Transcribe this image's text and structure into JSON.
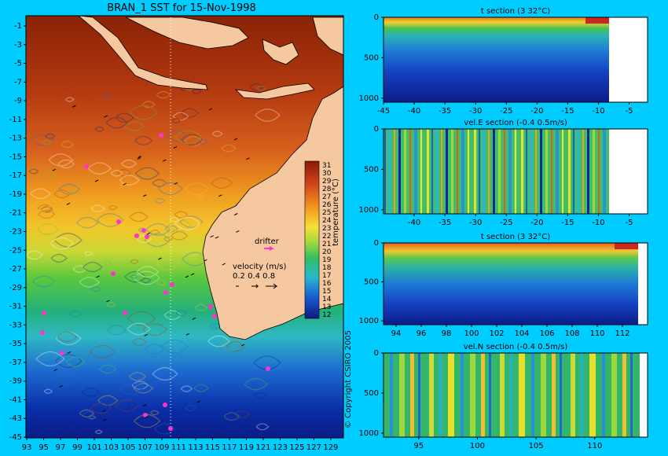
{
  "map": {
    "title": "BRAN_1 SST for 15-Nov-1998",
    "xticks": [
      "93",
      "95",
      "97",
      "99",
      "101",
      "103",
      "105",
      "107",
      "109",
      "111",
      "113",
      "115",
      "117",
      "119",
      "121",
      "123",
      "125",
      "127",
      "129"
    ],
    "yticks": [
      "-1",
      "-3",
      "-5",
      "-7",
      "-9",
      "-11",
      "-13",
      "-15",
      "-17",
      "-19",
      "-21",
      "-23",
      "-25",
      "-27",
      "-29",
      "-31",
      "-33",
      "-35",
      "-37",
      "-39",
      "-41",
      "-43",
      "-45"
    ],
    "colorbar_ticks": [
      "31",
      "30",
      "29",
      "28",
      "27",
      "26",
      "25",
      "24",
      "23",
      "22",
      "21",
      "20",
      "19",
      "18",
      "17",
      "16",
      "15",
      "14",
      "13",
      "12"
    ],
    "colorbar_label": "temperature (°C)",
    "drifter_label": "drifter",
    "velocity_label": "velocity (m/s)",
    "velocity_scale": "0.2 0.4 0.8",
    "copyright": "© Copyright CSIRO 2005",
    "colors": {
      "ocean_warm": "#b43a10",
      "ocean_cool": "#1e6bd0",
      "land": "#f6c8a0",
      "drifter": "#ff33cc"
    }
  },
  "chart_data": [
    {
      "type": "heatmap",
      "title": "t section (3      32°C)",
      "xlim": [
        -45,
        -2
      ],
      "ylim": [
        1050,
        0
      ],
      "xticks": [
        "-45",
        "-40",
        "-35",
        "-30",
        "-25",
        "-20",
        "-15",
        "-10",
        "-5"
      ],
      "yticks": [
        "0",
        "500",
        "1000"
      ],
      "variable": "temperature",
      "range_c": [
        3,
        32
      ]
    },
    {
      "type": "heatmap",
      "title": "vel.E section (-0.4      0.5m/s)",
      "xlim": [
        -45,
        -2
      ],
      "ylim": [
        1050,
        0
      ],
      "xticks": [
        "-40",
        "-35",
        "-30",
        "-25",
        "-20",
        "-15",
        "-10",
        "-5"
      ],
      "yticks": [
        "0",
        "500",
        "1000"
      ],
      "variable": "eastward velocity",
      "range_ms": [
        -0.4,
        0.5
      ]
    },
    {
      "type": "heatmap",
      "title": "t section (3      32°C)",
      "xlim": [
        93,
        114
      ],
      "ylim": [
        1050,
        0
      ],
      "xticks": [
        "94",
        "96",
        "98",
        "100",
        "102",
        "104",
        "106",
        "108",
        "110",
        "112"
      ],
      "yticks": [
        "0",
        "500",
        "1000"
      ],
      "variable": "temperature",
      "range_c": [
        3,
        32
      ]
    },
    {
      "type": "heatmap",
      "title": "vel.N section (-0.4      0.5m/s)",
      "xlim": [
        92,
        114.5
      ],
      "ylim": [
        1050,
        0
      ],
      "xticks": [
        "95",
        "100",
        "105",
        "110"
      ],
      "yticks": [
        "0",
        "500",
        "1000"
      ],
      "variable": "northward velocity",
      "range_ms": [
        -0.4,
        0.5
      ]
    }
  ]
}
